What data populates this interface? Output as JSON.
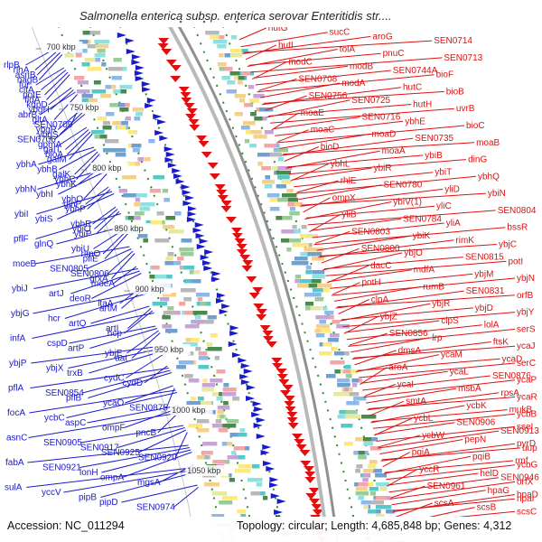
{
  "header": {
    "title": "Salmonella enterica subsp. enterica serovar Enteritidis str...."
  },
  "footer": {
    "accession": "Accession: NC_011294",
    "stats": "Topology: circular; Length: 4,685,848 bp; Genes: 4,312"
  },
  "colors": {
    "reverse_strand": "#1a1acc",
    "forward_strand": "#dd1111",
    "backbone": "#a0a0a0",
    "ring_guide": "#2e8b2e",
    "cog_palette": [
      "#f2a6a6",
      "#f4d08a",
      "#99cc99",
      "#8db8e8",
      "#c9a3d8",
      "#8fe0e0",
      "#ffe97a",
      "#b8b8b8",
      "#4a8a4a",
      "#70a0d0",
      "#e8e8a0",
      "#55c8c8"
    ]
  },
  "ticks": [
    "700 kbp",
    "750 kbp",
    "800 kbp",
    "850 kbp",
    "900 kbp",
    "950 kbp",
    "1000 kbp",
    "1050 kbp"
  ],
  "genes_left": [
    "rlpB",
    "rihA",
    "asnB",
    "nagB",
    "fur",
    "citA",
    "potE",
    "fldA",
    "kdpD",
    "ybgH",
    "abrB",
    "gltA",
    "SEN0709",
    "ybgR",
    "ybgS",
    "SEN0706",
    "gpmA",
    "galT",
    "bioA",
    "galM",
    "ybhA",
    "ybhB",
    "galK",
    "ybhC",
    "ybhK",
    "ybhN",
    "ybhI",
    "ybhO",
    "glnP",
    "ybhP",
    "ybiI",
    "ybiS",
    "ybhR",
    "ybiO",
    "ybiP",
    "pflF",
    "glnQ",
    "ybiU",
    "rimO",
    "pflE",
    "moeB",
    "SEN0805",
    "SEN0806",
    "grxA",
    "moeA",
    "ybiJ",
    "artJ",
    "deoR",
    "ltaA",
    "artM",
    "ybjG",
    "hcr",
    "artQ",
    "artI",
    "hcp",
    "infA",
    "cspD",
    "artP",
    "ybjE",
    "aat",
    "ybjP",
    "ybjX",
    "trxB",
    "cydC",
    "cydD",
    "pflA",
    "SEN0854",
    "pflB",
    "ycaO",
    "SEN0875",
    "focA",
    "ycbC",
    "aspC",
    "ompF",
    "pncB",
    "asnC",
    "SEN0905",
    "SEN0917",
    "SEN0925",
    "SEN0920",
    "fabA",
    "SEN0921",
    "lonH",
    "ompA",
    "mgsA",
    "sulA",
    "yccV",
    "pipB",
    "pipD",
    "SEN0974"
  ],
  "genes_right": [
    "hutG",
    "sucC",
    "aroG",
    "SEN0714",
    "hutI",
    "tolA",
    "pnuC",
    "SEN0713",
    "modC",
    "modB",
    "SEN0744A",
    "bioF",
    "SEN0708",
    "modA",
    "hutC",
    "bioB",
    "SEN0756",
    "SEN0725",
    "hutH",
    "uvrB",
    "moaE",
    "SEN0716",
    "ybhE",
    "bioC",
    "moaC",
    "moaD",
    "SEN0735",
    "moaB",
    "bioD",
    "moaA",
    "ybiB",
    "dinG",
    "ybhL",
    "ybiR",
    "ybiT",
    "ybhQ",
    "rhlE",
    "SEN0780",
    "yliD",
    "ybiN",
    "ompX",
    "ybiV(1)",
    "yliC",
    "SEN0804",
    "yliB",
    "SEN0784",
    "yliA",
    "bssR",
    "SEN0803",
    "ybiK",
    "rimK",
    "ybjC",
    "SEN0800",
    "ybjO",
    "SEN0815",
    "potI",
    "dacC",
    "mdfA",
    "ybjM",
    "ybjN",
    "potH",
    "rumB",
    "SEN0831",
    "orfB",
    "clpA",
    "ybjR",
    "ybjD",
    "ybjY",
    "ybjZ",
    "clpS",
    "lolA",
    "serS",
    "SEN0856",
    "lrp",
    "ftsK",
    "ycaJ",
    "dmsA",
    "ycaM",
    "ycaD",
    "serC",
    "aroA",
    "ycaL",
    "SEN0876",
    "ycaP",
    "ycaI",
    "msbA",
    "rpsA",
    "ycaR",
    "smtA",
    "ycbK",
    "mukB",
    "ycbB",
    "ycbL",
    "SEN0906",
    "sseI",
    "SEN0913",
    "ycbW",
    "pepN",
    "pyrD",
    "uup",
    "pqiA",
    "pqiB",
    "rmf",
    "ycbG",
    "yccR",
    "helD",
    "SEN0946",
    "orfX",
    "SEN0961",
    "hpaG",
    "hpaD",
    "hpaI",
    "scsA",
    "scsB",
    "scsC"
  ]
}
